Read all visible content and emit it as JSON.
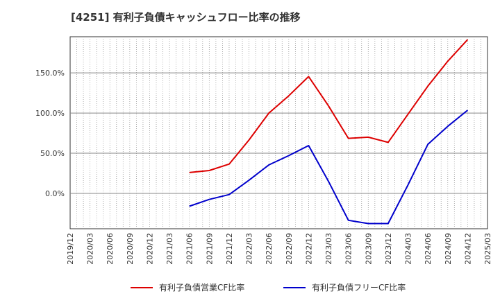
{
  "chart_data": {
    "type": "line",
    "title": "[4251]  有利子負債キャッシュフロー比率の推移",
    "x_labels": [
      "2019/12",
      "2020/03",
      "2020/06",
      "2020/09",
      "2020/12",
      "2021/03",
      "2021/06",
      "2021/09",
      "2021/12",
      "2022/03",
      "2022/06",
      "2022/09",
      "2022/12",
      "2023/03",
      "2023/06",
      "2023/09",
      "2023/12",
      "2024/03",
      "2024/06",
      "2024/09",
      "2024/12",
      "2025/03"
    ],
    "y_ticks": [
      "0.0%",
      "50.0%",
      "100.0%",
      "150.0%"
    ],
    "y_tick_values": [
      0,
      50,
      100,
      150
    ],
    "ylim": [
      -44,
      195
    ],
    "grid": true,
    "legend_position": "bottom",
    "series": [
      {
        "name": "有利子負債営業CF比率",
        "color": "#dd0000",
        "values": [
          null,
          null,
          null,
          null,
          null,
          null,
          26,
          28.5,
          36.5,
          66.5,
          100,
          121.5,
          145.5,
          109,
          68.5,
          70,
          63.5,
          98.5,
          133.5,
          164.5,
          191.5,
          null
        ]
      },
      {
        "name": "有利子負債フリーCF比率",
        "color": "#0000cc",
        "values": [
          null,
          null,
          null,
          null,
          null,
          null,
          -16,
          -7.5,
          -1.5,
          16.5,
          35.5,
          47,
          59.5,
          15,
          -33.5,
          -37.5,
          -37.5,
          10.5,
          61,
          83.5,
          103.5,
          null
        ]
      }
    ]
  }
}
